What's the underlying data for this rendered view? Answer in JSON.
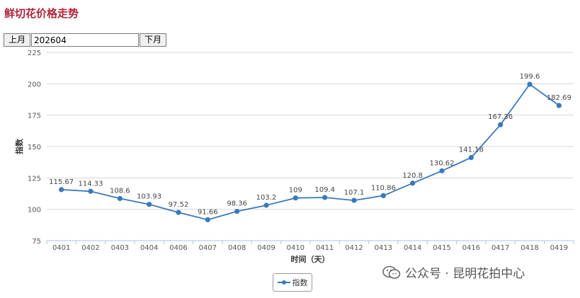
{
  "header": {
    "title": "鲜切花价格走势"
  },
  "nav": {
    "prev_label": "上月",
    "next_label": "下月",
    "month_value": "202604"
  },
  "watermark": {
    "text": "公众号 · 昆明花拍中心"
  },
  "colors": {
    "line": "#3a78bd",
    "grid": "#d6d6d6",
    "title": "#b0243a"
  },
  "chart_data": {
    "type": "line",
    "categories": [
      "0401",
      "0402",
      "0403",
      "0404",
      "0406",
      "0407",
      "0408",
      "0409",
      "0410",
      "0411",
      "0412",
      "0413",
      "0414",
      "0415",
      "0416",
      "0417",
      "0418",
      "0419"
    ],
    "series": [
      {
        "name": "指数",
        "values": [
          115.67,
          114.33,
          108.6,
          103.93,
          97.52,
          91.66,
          98.36,
          103.2,
          109,
          109.4,
          107.1,
          110.86,
          120.8,
          130.62,
          141.18,
          167.36,
          199.6,
          182.69
        ]
      }
    ],
    "xlabel": "时间（天）",
    "ylabel": "指数",
    "ylim": [
      75,
      225
    ],
    "yticks": [
      "75",
      "100",
      "125",
      "150",
      "175",
      "200",
      "225"
    ],
    "data_labels": [
      "115.67",
      "114.33",
      "108.6",
      "103.93",
      "97.52",
      "91.66",
      "98.36",
      "103.2",
      "109",
      "109.4",
      "107.1",
      "110.86",
      "120.8",
      "130.62",
      "141.18",
      "167.36",
      "199.6",
      "182.69"
    ],
    "grid": true,
    "legend": "bottom-center"
  }
}
